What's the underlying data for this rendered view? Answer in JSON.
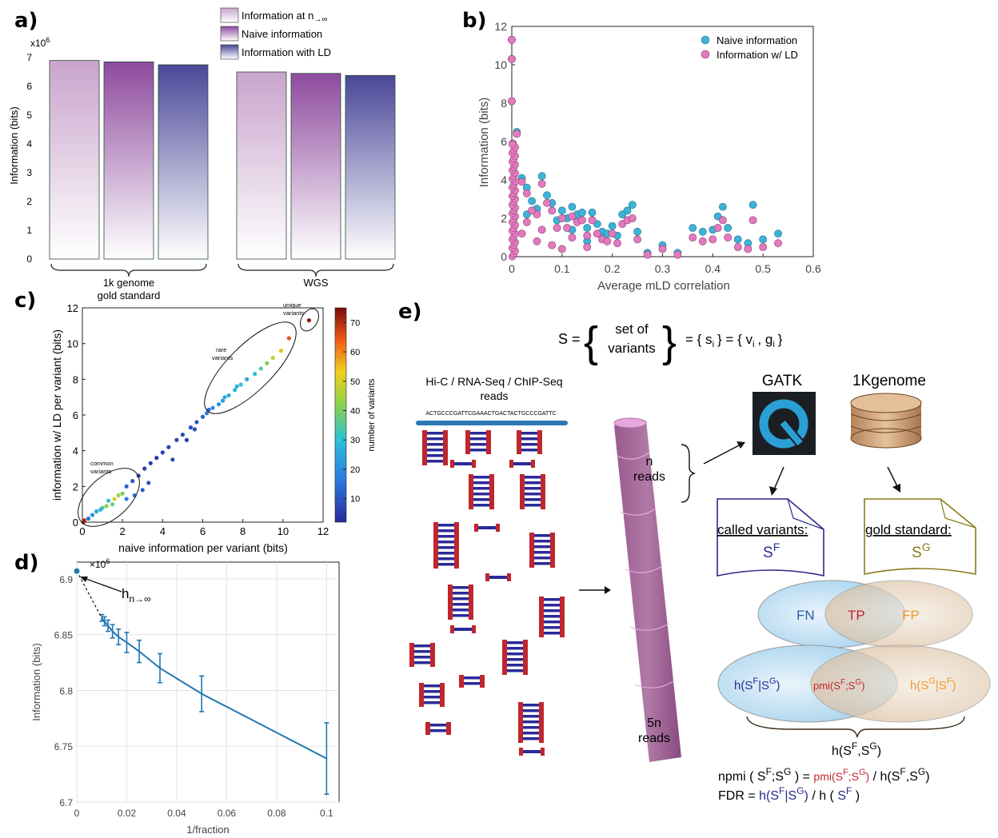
{
  "panels": {
    "a": {
      "label": "a)"
    },
    "b": {
      "label": "b)"
    },
    "c": {
      "label": "c)"
    },
    "d": {
      "label": "d)"
    },
    "e": {
      "label": "e)"
    }
  },
  "colors": {
    "inf": "#c9a4cc",
    "naive": "#8e4a9e",
    "ld": "#4a4798",
    "naive_dot": "#3bb4d8",
    "ld_dot": "#e27bbe",
    "line": "#1f77b4",
    "called": "#2a2a8c",
    "gold": "#8a7a1a",
    "tp": "#c0262d",
    "fp": "#f09a2a"
  },
  "chart_data": [
    {
      "type": "bar",
      "panel": "a",
      "ylabel": "Information (bits)",
      "scale_label": "x10",
      "scale_exp": "6",
      "yticks": [
        "0",
        "1",
        "2",
        "3",
        "4",
        "5",
        "6",
        "7"
      ],
      "ylim": [
        0,
        7
      ],
      "categories": [
        "1k genome gold standard",
        "WGS"
      ],
      "category_lines": [
        [
          "1k genome",
          "gold standard"
        ],
        [
          "WGS"
        ]
      ],
      "series": [
        {
          "name": "Information at n→∞",
          "values": [
            6.9,
            6.5
          ]
        },
        {
          "name": "Naive information",
          "values": [
            6.85,
            6.45
          ]
        },
        {
          "name": "Information with LD",
          "values": [
            6.75,
            6.38
          ]
        }
      ],
      "legend_prefix": "Information at n",
      "legend_arrow": "→∞"
    },
    {
      "type": "scatter",
      "panel": "b",
      "xlabel": "Average mLD correlation",
      "ylabel": "Information (bits)",
      "xticks": [
        "0",
        "0.1",
        "0.2",
        "0.3",
        "0.4",
        "0.5",
        "0.6"
      ],
      "yticks": [
        "0",
        "2",
        "4",
        "6",
        "8",
        "10",
        "12"
      ],
      "xlim": [
        0,
        0.6
      ],
      "ylim": [
        0,
        12
      ],
      "legend": "top-right",
      "series": [
        {
          "name": "Naive information",
          "points": [
            [
              0.0,
              11.3
            ],
            [
              0.0,
              10.3
            ],
            [
              0.0,
              8.1
            ],
            [
              0.002,
              5.9
            ],
            [
              0.01,
              6.5
            ],
            [
              0.02,
              4.1
            ],
            [
              0.03,
              3.6
            ],
            [
              0.05,
              2.5
            ],
            [
              0.06,
              4.2
            ],
            [
              0.07,
              3.2
            ],
            [
              0.08,
              2.8
            ],
            [
              0.1,
              2.4
            ],
            [
              0.12,
              2.6
            ],
            [
              0.12,
              1.4
            ],
            [
              0.13,
              2.2
            ],
            [
              0.14,
              2.3
            ],
            [
              0.15,
              1.5
            ],
            [
              0.16,
              2.3
            ],
            [
              0.18,
              1.3
            ],
            [
              0.19,
              1.2
            ],
            [
              0.2,
              1.6
            ],
            [
              0.21,
              1.1
            ],
            [
              0.22,
              2.2
            ],
            [
              0.23,
              2.4
            ],
            [
              0.24,
              2.7
            ],
            [
              0.25,
              1.3
            ],
            [
              0.27,
              0.2
            ],
            [
              0.3,
              0.6
            ],
            [
              0.33,
              0.2
            ],
            [
              0.36,
              1.5
            ],
            [
              0.38,
              1.3
            ],
            [
              0.4,
              1.4
            ],
            [
              0.41,
              2.1
            ],
            [
              0.42,
              2.6
            ],
            [
              0.43,
              1.5
            ],
            [
              0.45,
              0.9
            ],
            [
              0.47,
              0.7
            ],
            [
              0.48,
              2.7
            ],
            [
              0.5,
              0.9
            ],
            [
              0.53,
              1.2
            ],
            [
              0.09,
              1.9
            ],
            [
              0.11,
              2.0
            ],
            [
              0.17,
              1.7
            ],
            [
              0.04,
              2.9
            ],
            [
              0.03,
              2.2
            ],
            [
              0.15,
              0.8
            ]
          ]
        },
        {
          "name": "Information w/ LD",
          "points": [
            [
              0.0,
              11.3
            ],
            [
              0.0,
              10.3
            ],
            [
              0.0,
              8.1
            ],
            [
              0.002,
              5.9
            ],
            [
              0.01,
              6.4
            ],
            [
              0.02,
              3.9
            ],
            [
              0.03,
              3.3
            ],
            [
              0.05,
              2.2
            ],
            [
              0.06,
              3.8
            ],
            [
              0.07,
              2.8
            ],
            [
              0.08,
              2.4
            ],
            [
              0.1,
              2.0
            ],
            [
              0.12,
              2.1
            ],
            [
              0.12,
              1.0
            ],
            [
              0.13,
              1.8
            ],
            [
              0.14,
              1.9
            ],
            [
              0.15,
              1.1
            ],
            [
              0.16,
              1.9
            ],
            [
              0.18,
              0.9
            ],
            [
              0.19,
              0.8
            ],
            [
              0.2,
              1.2
            ],
            [
              0.21,
              0.7
            ],
            [
              0.22,
              1.7
            ],
            [
              0.23,
              1.9
            ],
            [
              0.24,
              2.0
            ],
            [
              0.25,
              0.9
            ],
            [
              0.27,
              0.1
            ],
            [
              0.3,
              0.4
            ],
            [
              0.33,
              0.1
            ],
            [
              0.36,
              1.0
            ],
            [
              0.38,
              0.8
            ],
            [
              0.4,
              0.9
            ],
            [
              0.41,
              1.5
            ],
            [
              0.42,
              1.9
            ],
            [
              0.43,
              1.0
            ],
            [
              0.45,
              0.5
            ],
            [
              0.47,
              0.4
            ],
            [
              0.48,
              1.9
            ],
            [
              0.5,
              0.5
            ],
            [
              0.53,
              0.7
            ],
            [
              0.09,
              1.5
            ],
            [
              0.11,
              1.5
            ],
            [
              0.17,
              1.2
            ],
            [
              0.04,
              2.4
            ],
            [
              0.03,
              1.8
            ],
            [
              0.15,
              0.5
            ],
            [
              0.02,
              1.2
            ],
            [
              0.05,
              0.8
            ],
            [
              0.08,
              0.6
            ],
            [
              0.1,
              0.4
            ],
            [
              0.06,
              1.4
            ]
          ]
        }
      ]
    },
    {
      "type": "scatter",
      "panel": "c",
      "xlabel": "naive information per variant (bits)",
      "ylabel": "information w/ LD per variant (bits)",
      "xticks": [
        "0",
        "2",
        "4",
        "6",
        "8",
        "10",
        "12"
      ],
      "yticks": [
        "0",
        "2",
        "4",
        "6",
        "8",
        "10",
        "12"
      ],
      "xlim": [
        0,
        12
      ],
      "ylim": [
        0,
        12
      ],
      "colorbar_label": "number of variants",
      "colorbar_ticks": [
        "10",
        "20",
        "30",
        "40",
        "50",
        "60",
        "70"
      ],
      "colorbar_range": [
        2,
        75
      ],
      "annotations": [
        [
          "common",
          "variants"
        ],
        [
          "rare",
          "variants"
        ],
        [
          "unique",
          "variants"
        ]
      ],
      "points": [
        [
          11.3,
          11.3,
          73
        ],
        [
          10.3,
          10.3,
          65
        ],
        [
          9.9,
          9.6,
          55
        ],
        [
          9.5,
          9.2,
          48
        ],
        [
          9.2,
          8.9,
          40
        ],
        [
          8.9,
          8.6,
          35
        ],
        [
          8.6,
          8.3,
          30
        ],
        [
          8.2,
          8.0,
          25
        ],
        [
          7.9,
          7.7,
          30
        ],
        [
          7.6,
          7.4,
          28
        ],
        [
          7.3,
          7.1,
          26
        ],
        [
          7.0,
          6.8,
          24
        ],
        [
          6.8,
          6.6,
          22
        ],
        [
          6.5,
          6.4,
          20
        ],
        [
          6.2,
          6.1,
          18
        ],
        [
          6.0,
          5.9,
          12
        ],
        [
          5.7,
          5.6,
          10
        ],
        [
          5.4,
          5.3,
          8
        ],
        [
          5.0,
          4.9,
          8
        ],
        [
          4.7,
          4.6,
          7
        ],
        [
          4.3,
          4.2,
          6
        ],
        [
          4.0,
          3.9,
          6
        ],
        [
          3.7,
          3.6,
          5
        ],
        [
          3.4,
          3.3,
          5
        ],
        [
          3.1,
          3.0,
          6
        ],
        [
          2.8,
          2.6,
          8
        ],
        [
          2.5,
          2.3,
          10
        ],
        [
          2.2,
          2.0,
          12
        ],
        [
          2.0,
          1.6,
          40
        ],
        [
          1.8,
          1.5,
          45
        ],
        [
          1.6,
          1.3,
          50
        ],
        [
          1.5,
          1.0,
          38
        ],
        [
          1.3,
          1.2,
          30
        ],
        [
          1.2,
          0.9,
          42
        ],
        [
          1.0,
          0.8,
          35
        ],
        [
          0.9,
          0.7,
          28
        ],
        [
          0.7,
          0.6,
          25
        ],
        [
          0.5,
          0.4,
          20
        ],
        [
          0.3,
          0.2,
          15
        ],
        [
          0.1,
          0.1,
          70
        ],
        [
          0.05,
          0.0,
          72
        ],
        [
          2.6,
          1.5,
          15
        ],
        [
          3.0,
          1.8,
          12
        ],
        [
          3.3,
          2.2,
          10
        ],
        [
          2.2,
          1.3,
          18
        ],
        [
          4.5,
          3.5,
          8
        ],
        [
          5.2,
          4.6,
          6
        ],
        [
          5.6,
          5.2,
          8
        ],
        [
          6.3,
          6.3,
          14
        ],
        [
          7.1,
          7.0,
          26
        ],
        [
          7.7,
          7.6,
          28
        ]
      ]
    },
    {
      "type": "line",
      "panel": "d",
      "xlabel": "1/fraction",
      "ylabel": "Information (bits)",
      "scale_label": "×10",
      "scale_exp": "6",
      "xticks": [
        "0",
        "0.02",
        "0.04",
        "0.06",
        "0.08",
        "0.1"
      ],
      "yticks": [
        "6.7",
        "6.75",
        "6.8",
        "6.85",
        "6.9"
      ],
      "xlim": [
        0,
        0.105
      ],
      "ylim": [
        6.7,
        6.915
      ],
      "grid": true,
      "x": [
        0.01,
        0.0111,
        0.0125,
        0.0143,
        0.0167,
        0.02,
        0.025,
        0.0333,
        0.05,
        0.1
      ],
      "y": [
        6.865,
        6.862,
        6.858,
        6.853,
        6.848,
        6.843,
        6.835,
        6.82,
        6.797,
        6.739
      ],
      "err": [
        0.003,
        0.004,
        0.005,
        0.006,
        0.007,
        0.009,
        0.01,
        0.013,
        0.016,
        0.032
      ],
      "extrapolated_point": {
        "x": 0,
        "y": 6.907
      },
      "annotation": {
        "base": "h",
        "sub": "n→∞"
      }
    }
  ],
  "diagram": {
    "set_def": {
      "lhs": "S =",
      "brace_text": [
        "set of",
        "variants"
      ],
      "rhs": "= { s",
      "rhs_i": "i",
      "rhs_mid": "} = { v",
      "rhs_v": "i",
      "rhs_g": ", g",
      "rhs_gi": "i",
      "rhs_end": "}"
    },
    "reads_title": [
      "Hi-C / RNA-Seq / ChIP-Seq",
      "reads"
    ],
    "sequence": "ACTGCCCGATTCGAAACTGACTACTGCCCGATTC",
    "tube_top": [
      "n",
      "reads"
    ],
    "tube_bottom": [
      "5n",
      "reads"
    ],
    "gatk_label": "GATK",
    "db_label": "1Kgenome",
    "called_label": "called variants:",
    "gold_label": "gold standard:",
    "sf_base": "S",
    "sf_sup": "F",
    "sg_base": "S",
    "sg_sup": "G",
    "venn1": {
      "fn": "FN",
      "tp": "TP",
      "fp": "FP"
    },
    "venn2": {
      "left": "h(S",
      "left_sup1": "F",
      "left_mid": "|S",
      "left_sup2": "G",
      "left_end": ")",
      "mid": "pmi(S",
      "mid_sup1": "F",
      "mid_sep": ";S",
      "mid_sup2": "G",
      "mid_end": ")",
      "right": "h(S",
      "right_sup1": "G",
      "right_mid": "|S",
      "right_sup2": "F",
      "right_end": ")"
    },
    "joint": {
      "base": "h(S",
      "sup1": "F",
      "sep": ",S",
      "sup2": "G",
      "end": ")"
    },
    "npmi_line": {
      "a": "npmi ( S",
      "a1": "F",
      "b": ";S",
      "b1": "G",
      "c": " ) = ",
      "d": "pmi(S",
      "d1": "F",
      "e": ";S",
      "e1": "G",
      "f": ")",
      "g": " / h(S",
      "g1": "F",
      "h": ",S",
      "h1": "G",
      "i": ")"
    },
    "fdr_line": {
      "a": "FDR = ",
      "b": "h(S",
      "b1": "F",
      "c": "|S",
      "c1": "G",
      "d": ")",
      "e": " / h ( ",
      "f": "S",
      "f1": "F",
      "g": " )"
    }
  }
}
